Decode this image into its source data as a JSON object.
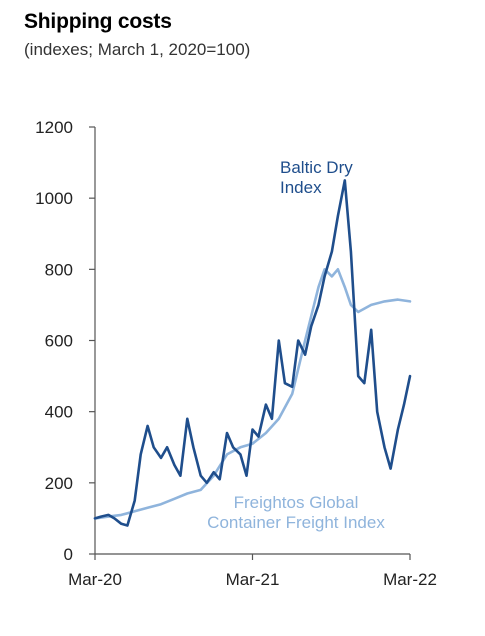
{
  "chart_data": {
    "type": "line",
    "title": "Shipping costs",
    "subtitle": "(indexes; March 1, 2020=100)",
    "xlabel": "",
    "ylabel": "",
    "ylim": [
      0,
      1200
    ],
    "xlim": [
      "2020-03",
      "2022-03"
    ],
    "y_ticks": [
      0,
      200,
      400,
      600,
      800,
      1000,
      1200
    ],
    "x_ticks": [
      {
        "date": "2020-03",
        "label": "Mar-20"
      },
      {
        "date": "2021-03",
        "label": "Mar-21"
      },
      {
        "date": "2022-03",
        "label": "Mar-22"
      }
    ],
    "grid": false,
    "legend": "inline labels",
    "series": [
      {
        "name": "Baltic Dry Index",
        "label_lines": [
          "Baltic Dry",
          "Index"
        ],
        "color": "#1f4e8c",
        "points": [
          [
            "2020-03-01",
            100
          ],
          [
            "2020-03-15",
            105
          ],
          [
            "2020-04-01",
            110
          ],
          [
            "2020-04-15",
            100
          ],
          [
            "2020-05-01",
            85
          ],
          [
            "2020-05-15",
            80
          ],
          [
            "2020-06-01",
            150
          ],
          [
            "2020-06-15",
            280
          ],
          [
            "2020-07-01",
            360
          ],
          [
            "2020-07-15",
            300
          ],
          [
            "2020-08-01",
            270
          ],
          [
            "2020-08-15",
            300
          ],
          [
            "2020-09-01",
            250
          ],
          [
            "2020-09-15",
            220
          ],
          [
            "2020-10-01",
            380
          ],
          [
            "2020-10-15",
            300
          ],
          [
            "2020-11-01",
            220
          ],
          [
            "2020-11-15",
            200
          ],
          [
            "2020-12-01",
            230
          ],
          [
            "2020-12-15",
            210
          ],
          [
            "2021-01-01",
            340
          ],
          [
            "2021-01-15",
            300
          ],
          [
            "2021-02-01",
            280
          ],
          [
            "2021-02-15",
            220
          ],
          [
            "2021-03-01",
            350
          ],
          [
            "2021-03-15",
            330
          ],
          [
            "2021-04-01",
            420
          ],
          [
            "2021-04-15",
            380
          ],
          [
            "2021-05-01",
            600
          ],
          [
            "2021-05-15",
            480
          ],
          [
            "2021-06-01",
            470
          ],
          [
            "2021-06-15",
            600
          ],
          [
            "2021-07-01",
            560
          ],
          [
            "2021-07-15",
            640
          ],
          [
            "2021-08-01",
            700
          ],
          [
            "2021-08-15",
            780
          ],
          [
            "2021-09-01",
            850
          ],
          [
            "2021-09-15",
            950
          ],
          [
            "2021-10-01",
            1050
          ],
          [
            "2021-10-15",
            850
          ],
          [
            "2021-11-01",
            500
          ],
          [
            "2021-11-15",
            480
          ],
          [
            "2021-12-01",
            630
          ],
          [
            "2021-12-15",
            400
          ],
          [
            "2022-01-01",
            300
          ],
          [
            "2022-01-15",
            240
          ],
          [
            "2022-02-01",
            350
          ],
          [
            "2022-02-15",
            420
          ],
          [
            "2022-03-01",
            500
          ]
        ]
      },
      {
        "name": "Freightos Global Container Freight Index",
        "label_lines": [
          "Freightos Global",
          "Container Freight Index"
        ],
        "color": "#8fb4dc",
        "points": [
          [
            "2020-03-01",
            100
          ],
          [
            "2020-04-01",
            105
          ],
          [
            "2020-05-01",
            110
          ],
          [
            "2020-06-01",
            120
          ],
          [
            "2020-07-01",
            130
          ],
          [
            "2020-08-01",
            140
          ],
          [
            "2020-09-01",
            155
          ],
          [
            "2020-10-01",
            170
          ],
          [
            "2020-11-01",
            180
          ],
          [
            "2020-12-01",
            220
          ],
          [
            "2021-01-01",
            280
          ],
          [
            "2021-02-01",
            300
          ],
          [
            "2021-03-01",
            310
          ],
          [
            "2021-04-01",
            340
          ],
          [
            "2021-05-01",
            380
          ],
          [
            "2021-06-01",
            450
          ],
          [
            "2021-07-01",
            600
          ],
          [
            "2021-08-01",
            750
          ],
          [
            "2021-08-15",
            800
          ],
          [
            "2021-09-01",
            780
          ],
          [
            "2021-09-15",
            800
          ],
          [
            "2021-10-01",
            750
          ],
          [
            "2021-10-15",
            700
          ],
          [
            "2021-11-01",
            680
          ],
          [
            "2021-12-01",
            700
          ],
          [
            "2022-01-01",
            710
          ],
          [
            "2022-02-01",
            715
          ],
          [
            "2022-03-01",
            710
          ]
        ]
      }
    ]
  }
}
